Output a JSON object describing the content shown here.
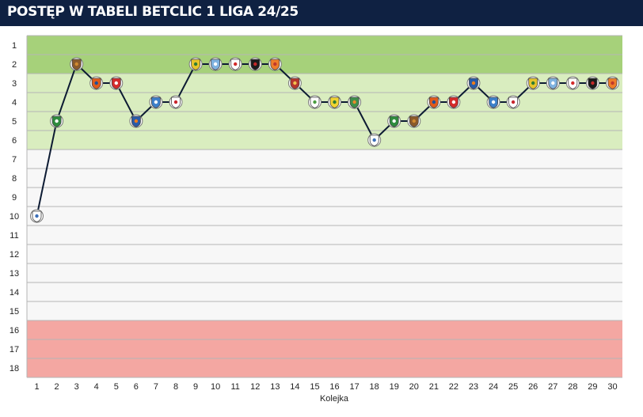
{
  "header": {
    "title": "POSTĘP W TABELI BETCLIC 1 LIGA 24/25"
  },
  "colors": {
    "header_bg": "#0f2142",
    "line": "#0d1b33",
    "zone_promotion": "#a6d17a",
    "zone_playoff": "#d9edbf",
    "zone_relegation": "#f4a7a2",
    "zone_neutral": "#f7f7f7"
  },
  "chart_data": {
    "type": "line",
    "title": "POSTĘP W TABELI BETCLIC 1 LIGA 24/25",
    "xlabel": "Kolejka",
    "ylabel": "",
    "x": [
      1,
      2,
      3,
      4,
      5,
      6,
      7,
      8,
      9,
      10,
      11,
      12,
      13,
      14,
      15,
      16,
      17,
      18,
      19,
      20,
      21,
      22,
      23,
      24,
      25,
      26,
      27,
      28,
      29,
      30
    ],
    "y_ticks": [
      1,
      2,
      3,
      4,
      5,
      6,
      7,
      8,
      9,
      10,
      11,
      12,
      13,
      14,
      15,
      16,
      17,
      18
    ],
    "ylim": [
      1,
      18
    ],
    "y_inverted": true,
    "grid": true,
    "zones": [
      {
        "from": 1,
        "to": 2,
        "kind": "promotion"
      },
      {
        "from": 3,
        "to": 6,
        "kind": "playoff"
      },
      {
        "from": 7,
        "to": 15,
        "kind": "neutral"
      },
      {
        "from": 16,
        "to": 18,
        "kind": "relegation"
      }
    ],
    "series": [
      {
        "values": [
          10,
          5,
          2,
          3,
          3,
          5,
          4,
          4,
          2,
          2,
          2,
          2,
          2,
          3,
          4,
          4,
          4,
          6,
          5,
          5,
          4,
          4,
          3,
          4,
          4,
          3,
          3,
          3,
          3,
          3
        ]
      }
    ],
    "markers": [
      {
        "icon": "crest-white-blue",
        "fill": "#ffffff",
        "accent": "#3b6fb8"
      },
      {
        "icon": "crest-green-ring",
        "fill": "#2e8b3d",
        "accent": "#ffffff"
      },
      {
        "icon": "crest-brown",
        "fill": "#8a5a2b",
        "accent": "#d08a30"
      },
      {
        "icon": "crest-orange-blue",
        "fill": "#e05a1c",
        "accent": "#1d4f9c"
      },
      {
        "icon": "crest-red-white",
        "fill": "#d42b2b",
        "accent": "#ffffff"
      },
      {
        "icon": "crest-blue-orange",
        "fill": "#2a5ba8",
        "accent": "#f07d1a"
      },
      {
        "icon": "crest-blue-white",
        "fill": "#3d7fc9",
        "accent": "#ffffff"
      },
      {
        "icon": "crest-red-green",
        "fill": "#ffffff",
        "accent": "#c8252c"
      },
      {
        "icon": "crest-yellow-green",
        "fill": "#e6c42c",
        "accent": "#2f7d32"
      },
      {
        "icon": "crest-lightblue",
        "fill": "#7fb2e0",
        "accent": "#ffffff"
      },
      {
        "icon": "crest-white-red",
        "fill": "#ffffff",
        "accent": "#d22a2a"
      },
      {
        "icon": "crest-black-red",
        "fill": "#1b1b1b",
        "accent": "#c62828"
      },
      {
        "icon": "crest-orange",
        "fill": "#ef7d2a",
        "accent": "#c0392b"
      },
      {
        "icon": "crest-red-round",
        "fill": "#b5362d",
        "accent": "#f2c14e"
      },
      {
        "icon": "crest-green-white",
        "fill": "#ffffff",
        "accent": "#4a9d3f"
      },
      {
        "icon": "crest-yellow-green",
        "fill": "#f2d430",
        "accent": "#2f7d32"
      },
      {
        "icon": "crest-green-orange",
        "fill": "#3f8f4a",
        "accent": "#e98a2a"
      },
      {
        "icon": "crest-white-blue",
        "fill": "#ffffff",
        "accent": "#3b6fb8"
      },
      {
        "icon": "crest-green-ring",
        "fill": "#2e8b3d",
        "accent": "#ffffff"
      },
      {
        "icon": "crest-brown",
        "fill": "#8a5a2b",
        "accent": "#d08a30"
      },
      {
        "icon": "crest-orange-blue",
        "fill": "#e05a1c",
        "accent": "#1d4f9c"
      },
      {
        "icon": "crest-red-white",
        "fill": "#d42b2b",
        "accent": "#ffffff"
      },
      {
        "icon": "crest-blue-orange",
        "fill": "#2a5ba8",
        "accent": "#f07d1a"
      },
      {
        "icon": "crest-blue-white",
        "fill": "#3d7fc9",
        "accent": "#ffffff"
      },
      {
        "icon": "crest-red-green",
        "fill": "#ffffff",
        "accent": "#c8252c"
      },
      {
        "icon": "crest-yellow-green",
        "fill": "#e6c42c",
        "accent": "#2f7d32"
      },
      {
        "icon": "crest-lightblue",
        "fill": "#7fb2e0",
        "accent": "#ffffff"
      },
      {
        "icon": "crest-white-red",
        "fill": "#ffffff",
        "accent": "#d22a2a"
      },
      {
        "icon": "crest-black-red",
        "fill": "#1b1b1b",
        "accent": "#c62828"
      },
      {
        "icon": "crest-orange",
        "fill": "#ef7d2a",
        "accent": "#c0392b"
      }
    ]
  }
}
